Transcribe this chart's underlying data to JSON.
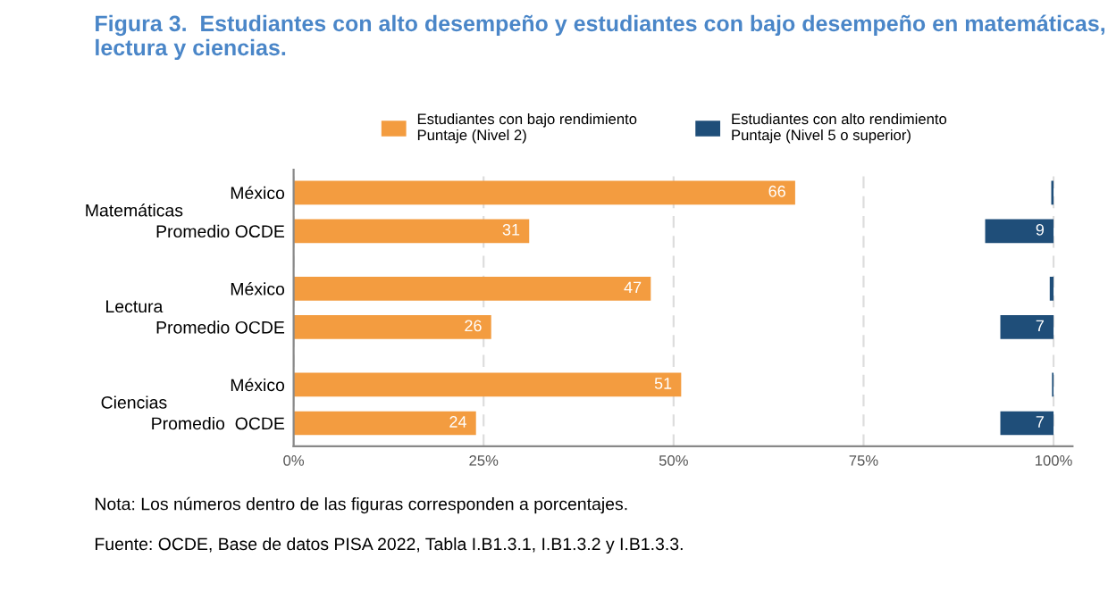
{
  "chart_data": {
    "type": "bar",
    "orientation": "horizontal",
    "title": "Figura 3.  Estudiantes con alto desempeño y estudiantes con bajo desempeño en matemáticas,\nlectura y ciencias.",
    "categories": [
      "México",
      "Promedio OCDE",
      "México",
      "Promedio OCDE",
      "México",
      "Promedio  OCDE"
    ],
    "series": [
      {
        "name": "Estudiantes con bajo rendimiento\nPuntaje (Nivel 2)",
        "color": "#f39c40",
        "values": [
          66,
          31,
          47,
          26,
          51,
          24
        ],
        "base": [
          0,
          0,
          0,
          0,
          0,
          0
        ],
        "value_labels": [
          "66",
          "31",
          "47",
          "26",
          "51",
          "24"
        ]
      },
      {
        "name": "Estudiantes con alto rendimiento\nPuntaje (Nivel 5 o superior)",
        "color": "#1f4e79",
        "values": [
          0.3,
          9,
          0.5,
          7,
          0.2,
          7
        ],
        "base": [
          99.7,
          91,
          99.5,
          93,
          99.8,
          93
        ],
        "value_labels": [
          null,
          "9",
          null,
          "7",
          null,
          "7"
        ]
      }
    ],
    "xlim": [
      0,
      102.5
    ],
    "xticks": [
      {
        "value": 0,
        "label": "0%"
      },
      {
        "value": 25,
        "label": "25%"
      },
      {
        "value": 50,
        "label": "50%"
      },
      {
        "value": 75,
        "label": "75%"
      },
      {
        "value": 100,
        "label": "100%"
      }
    ],
    "grid": "x",
    "legend": "top",
    "annotations": [
      "Matemáticas",
      "Lectura",
      "Ciencias",
      "Nota: Los números dentro de las figuras corresponden a porcentajes.",
      "Fuente: OCDE, Base de datos PISA 2022, Tabla I.B1.3.1, I.B1.3.2 y I.B1.3.3."
    ]
  }
}
